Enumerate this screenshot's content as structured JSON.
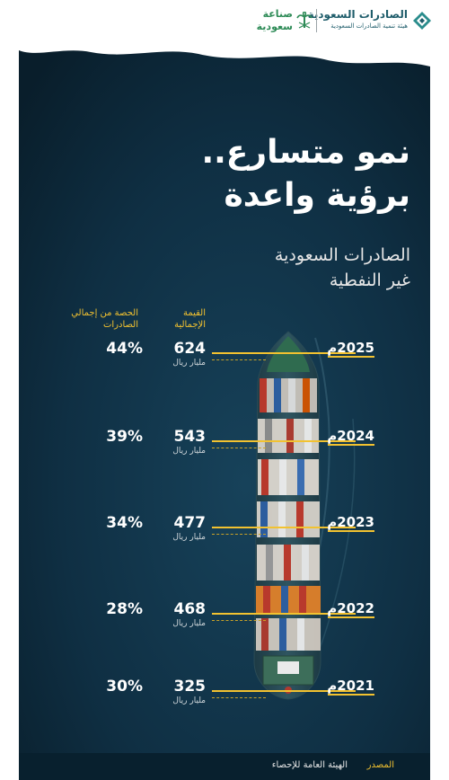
{
  "header": {
    "right_logo": {
      "title": "الصادرات السعودية",
      "subtitle": "هيئة تنمية الصادرات السعودية"
    },
    "left_logo": {
      "line1": "صناعة",
      "line2": "سعودية"
    }
  },
  "headline": {
    "line1": "نمو متسارع..",
    "line2": "برؤية واعدة"
  },
  "subheadline": {
    "line1": "الصادرات السعودية",
    "line2": "غير النفطية"
  },
  "columns": {
    "value_header": [
      "القيمة",
      "الإجمالية"
    ],
    "share_header": "الحصة من إجمالي الصادرات"
  },
  "rows": [
    {
      "year": "2025م",
      "value": "624",
      "unit": "مليار ريال",
      "share": "44%"
    },
    {
      "year": "2024م",
      "value": "543",
      "unit": "مليار ريال",
      "share": "39%"
    },
    {
      "year": "2023م",
      "value": "477",
      "unit": "مليار ريال",
      "share": "34%"
    },
    {
      "year": "2022م",
      "value": "468",
      "unit": "مليار ريال",
      "share": "28%"
    },
    {
      "year": "2021م",
      "value": "325",
      "unit": "مليار ريال",
      "share": "30%"
    }
  ],
  "source": {
    "label": "المصدر",
    "text": "الهيئة العامة للإحصاء"
  },
  "colors": {
    "accent": "#f2c230",
    "background": "#0d2a3c",
    "brand": "#1f5d6b"
  }
}
